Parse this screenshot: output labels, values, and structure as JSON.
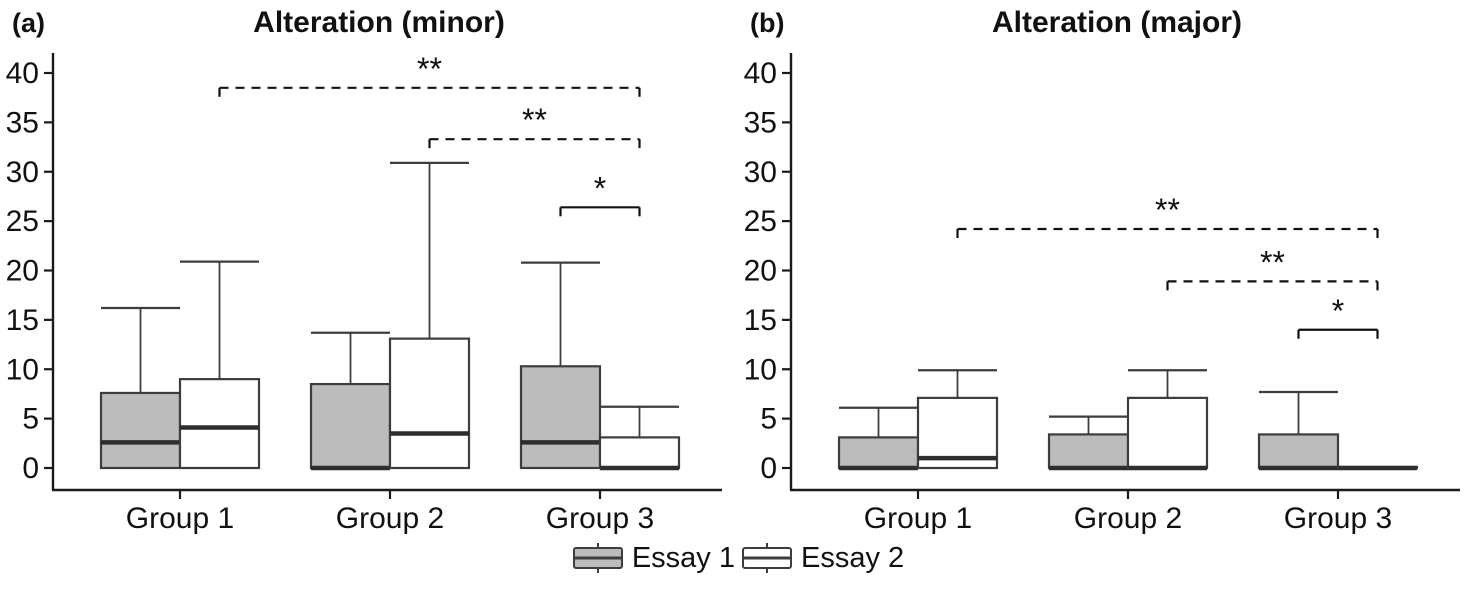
{
  "colors": {
    "background": "#ffffff",
    "axis": "#1a1a1a",
    "text": "#111111",
    "box_border": "#3d3d3d",
    "median": "#2e2e2e",
    "essay1_fill": "#bcbcbc",
    "essay2_fill": "#ffffff"
  },
  "legend": {
    "items": [
      {
        "label": "Essay 1",
        "fill": "#bcbcbc"
      },
      {
        "label": "Essay 2",
        "fill": "#ffffff"
      }
    ]
  },
  "chart_data": [
    {
      "type": "boxplot",
      "panel_label": "(a)",
      "title": "Alteration (minor)",
      "categories": [
        "Group 1",
        "Group 2",
        "Group 3"
      ],
      "ylim": [
        0,
        40
      ],
      "yticks": [
        0,
        5,
        10,
        15,
        20,
        25,
        30,
        35,
        40
      ],
      "grid": "off",
      "series": [
        {
          "name": "Essay 1",
          "fill": "#bcbcbc",
          "boxes": [
            {
              "low": 0,
              "q1": 0,
              "median": 2.6,
              "q3": 7.6,
              "high": 16.2
            },
            {
              "low": 0,
              "q1": 0,
              "median": 0,
              "q3": 8.5,
              "high": 13.7
            },
            {
              "low": 0,
              "q1": 0,
              "median": 2.6,
              "q3": 10.3,
              "high": 20.8
            }
          ]
        },
        {
          "name": "Essay 2",
          "fill": "#ffffff",
          "boxes": [
            {
              "low": 0,
              "q1": 0,
              "median": 4.1,
              "q3": 9.0,
              "high": 20.9
            },
            {
              "low": 0,
              "q1": 0,
              "median": 3.5,
              "q3": 13.1,
              "high": 30.9
            },
            {
              "low": 0,
              "q1": 0,
              "median": 0,
              "q3": 3.1,
              "high": 6.2
            }
          ]
        }
      ],
      "significance_brackets": [
        {
          "label": "**",
          "style": "dashed",
          "level": 38.5,
          "from": {
            "group": 0,
            "series": 1
          },
          "to": {
            "group": 2,
            "series": 1
          }
        },
        {
          "label": "**",
          "style": "dashed",
          "level": 33.3,
          "from": {
            "group": 1,
            "series": 1
          },
          "to": {
            "group": 2,
            "series": 1
          }
        },
        {
          "label": "*",
          "style": "solid",
          "level": 26.4,
          "from": {
            "group": 2,
            "series": 0
          },
          "to": {
            "group": 2,
            "series": 1
          }
        }
      ]
    },
    {
      "type": "boxplot",
      "panel_label": "(b)",
      "title": "Alteration (major)",
      "categories": [
        "Group 1",
        "Group 2",
        "Group 3"
      ],
      "ylim": [
        0,
        40
      ],
      "yticks": [
        0,
        5,
        10,
        15,
        20,
        25,
        30,
        35,
        40
      ],
      "grid": "off",
      "series": [
        {
          "name": "Essay 1",
          "fill": "#bcbcbc",
          "boxes": [
            {
              "low": 0,
              "q1": 0,
              "median": 0,
              "q3": 3.1,
              "high": 6.1
            },
            {
              "low": 0,
              "q1": 0,
              "median": 0,
              "q3": 3.4,
              "high": 5.2
            },
            {
              "low": 0,
              "q1": 0,
              "median": 0,
              "q3": 3.4,
              "high": 7.7
            }
          ]
        },
        {
          "name": "Essay 2",
          "fill": "#ffffff",
          "boxes": [
            {
              "low": 0,
              "q1": 0,
              "median": 1.0,
              "q3": 7.1,
              "high": 9.9
            },
            {
              "low": 0,
              "q1": 0,
              "median": 0,
              "q3": 7.1,
              "high": 9.9
            },
            {
              "low": 0,
              "q1": 0,
              "median": 0,
              "q3": 0.1,
              "high": 0.1
            }
          ]
        }
      ],
      "significance_brackets": [
        {
          "label": "**",
          "style": "dashed",
          "level": 24.2,
          "from": {
            "group": 0,
            "series": 1
          },
          "to": {
            "group": 2,
            "series": 1
          }
        },
        {
          "label": "**",
          "style": "dashed",
          "level": 18.9,
          "from": {
            "group": 1,
            "series": 1
          },
          "to": {
            "group": 2,
            "series": 1
          }
        },
        {
          "label": "*",
          "style": "solid",
          "level": 14.0,
          "from": {
            "group": 2,
            "series": 0
          },
          "to": {
            "group": 2,
            "series": 1
          }
        }
      ]
    }
  ]
}
